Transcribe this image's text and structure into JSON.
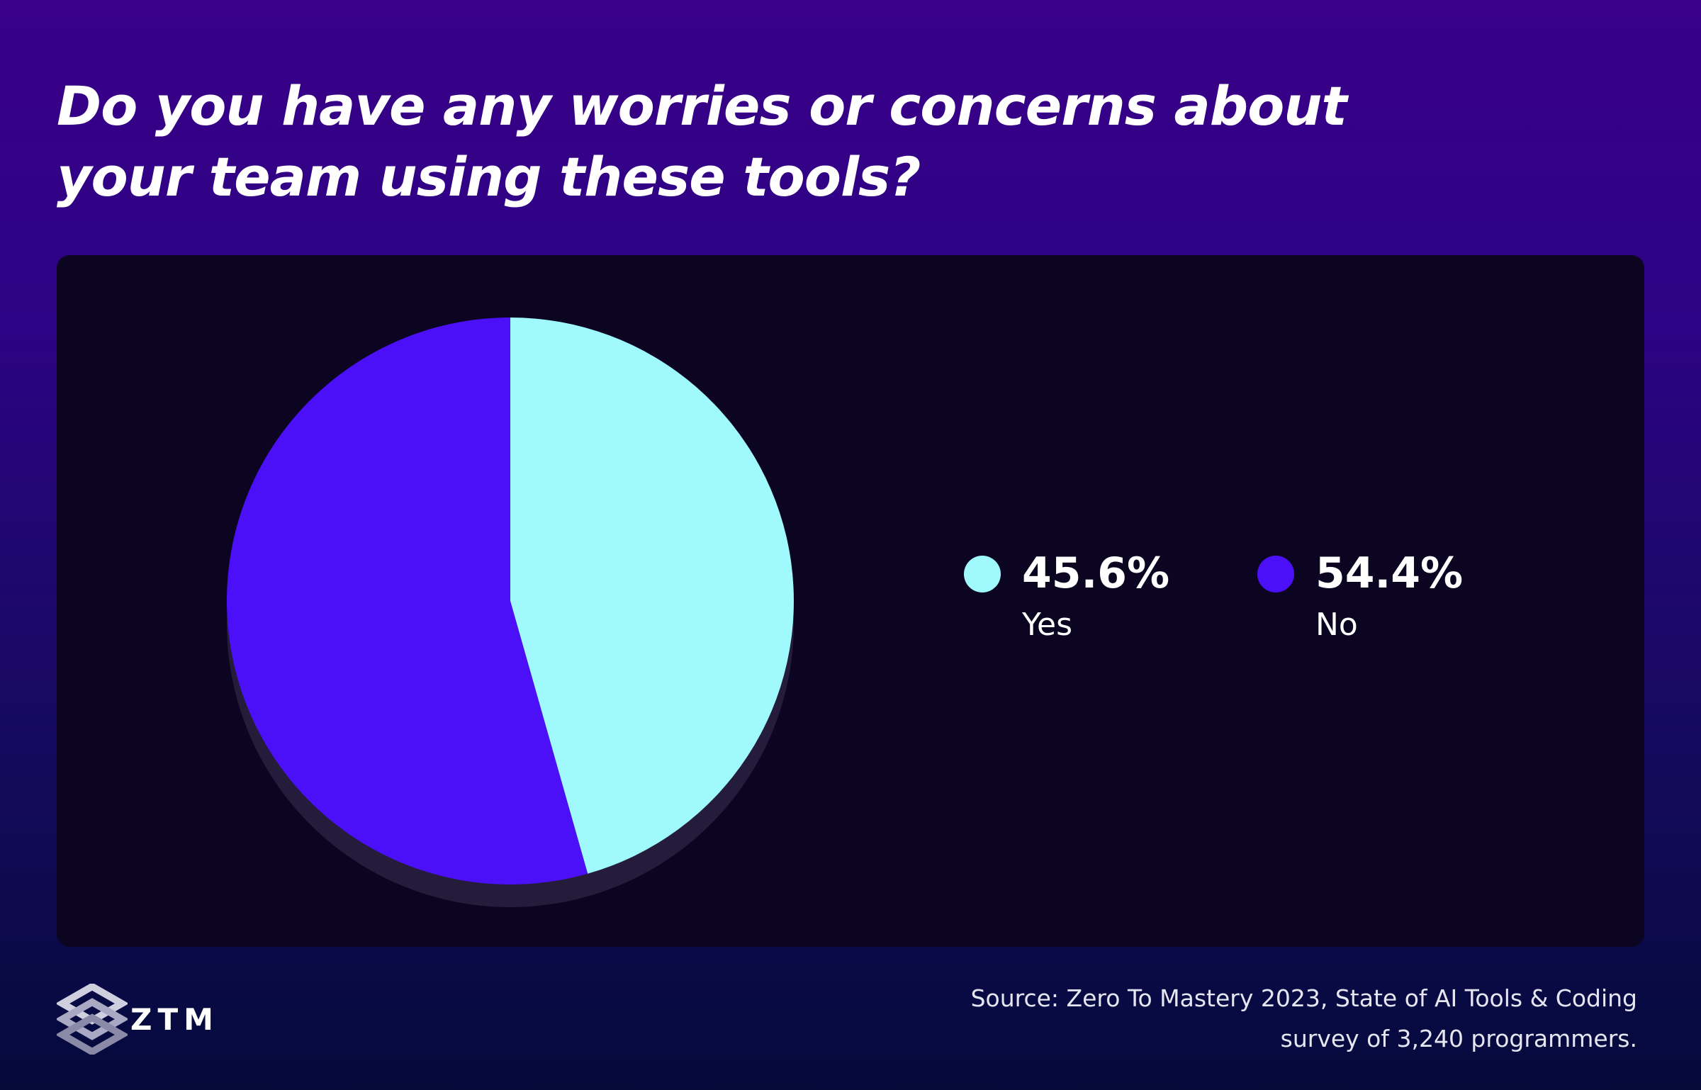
{
  "title": "Do you have any worries or concerns about your team using these tools?",
  "chart_data": {
    "type": "pie",
    "title": "Do you have any worries or concerns about your team using these tools?",
    "categories": [
      "Yes",
      "No"
    ],
    "values": [
      45.6,
      54.4
    ],
    "unit": "%",
    "colors": [
      "#9ff9fd",
      "#4b10f8"
    ],
    "legend": [
      {
        "label": "Yes",
        "value": "45.6%",
        "color": "#9ff9fd"
      },
      {
        "label": "No",
        "value": "54.4%",
        "color": "#4b10f8"
      }
    ],
    "legend_position": "right"
  },
  "logo": {
    "text": "ZTM",
    "icon": "ztm-logo-icon"
  },
  "source": {
    "line1": "Source: Zero To Mastery 2023, State of AI Tools & Coding",
    "line2": "survey of 3,240 programmers."
  },
  "colors": {
    "background_top": "#3a0088",
    "background_bottom": "#040a3a",
    "panel": "#0c0522",
    "pie_shadow": "#241c3a"
  }
}
